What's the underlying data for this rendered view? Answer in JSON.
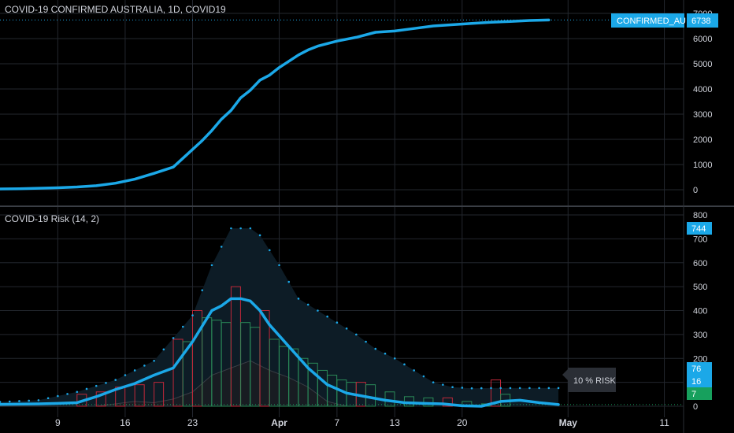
{
  "top_panel": {
    "title": "COVID-19 CONFIRMED AUSTRALIA, 1D, COVID19",
    "price_tag_label": "CONFIRMED_AU",
    "price_tag_value": "6738"
  },
  "bottom_panel": {
    "title": "COVID-19  Risk (14, 2)",
    "risk_label": "10 % RISK",
    "badges": [
      "744",
      "76",
      "16",
      "7"
    ]
  },
  "colors": {
    "background": "#000000",
    "main_line": "#1ba8e8",
    "dots": "#1ba8e8",
    "band_fill": "#0d1c26",
    "bar_red": "#c0283a",
    "bar_green": "#2a8a58",
    "area_gray": "#181c22",
    "grid": "#23272e",
    "badge_blue": "#1ba8e8",
    "badge_green": "#17a05d"
  },
  "x_axis": {
    "ticks": [
      {
        "label": "9",
        "date": "2020-03-09"
      },
      {
        "label": "16",
        "date": "2020-03-16"
      },
      {
        "label": "23",
        "date": "2020-03-23"
      },
      {
        "label": "Apr",
        "date": "2020-04-01"
      },
      {
        "label": "7",
        "date": "2020-04-07"
      },
      {
        "label": "13",
        "date": "2020-04-13"
      },
      {
        "label": "20",
        "date": "2020-04-20"
      },
      {
        "label": "May",
        "date": "2020-05-01"
      },
      {
        "label": "11",
        "date": "2020-05-11"
      }
    ],
    "start": "2020-03-03",
    "end": "2020-05-13"
  },
  "chart_data": [
    {
      "type": "line",
      "title": "COVID-19 CONFIRMED AUSTRALIA, 1D, COVID19",
      "ylim": [
        -300,
        7000
      ],
      "yticks": [
        "0",
        "1000",
        "2000",
        "3000",
        "4000",
        "5000",
        "6000",
        "7000"
      ],
      "grid": true,
      "series": [
        {
          "name": "CONFIRMED_AU",
          "x": [
            "2020-03-03",
            "2020-03-05",
            "2020-03-07",
            "2020-03-09",
            "2020-03-11",
            "2020-03-13",
            "2020-03-15",
            "2020-03-17",
            "2020-03-19",
            "2020-03-21",
            "2020-03-23",
            "2020-03-24",
            "2020-03-25",
            "2020-03-26",
            "2020-03-27",
            "2020-03-28",
            "2020-03-29",
            "2020-03-30",
            "2020-03-31",
            "2020-04-01",
            "2020-04-02",
            "2020-04-03",
            "2020-04-04",
            "2020-04-05",
            "2020-04-07",
            "2020-04-09",
            "2020-04-11",
            "2020-04-13",
            "2020-04-15",
            "2020-04-17",
            "2020-04-19",
            "2020-04-21",
            "2020-04-23",
            "2020-04-25",
            "2020-04-27",
            "2020-04-29"
          ],
          "y": [
            30,
            40,
            60,
            80,
            110,
            160,
            260,
            420,
            650,
            900,
            1600,
            1950,
            2350,
            2800,
            3150,
            3650,
            3950,
            4350,
            4550,
            4850,
            5100,
            5350,
            5550,
            5700,
            5900,
            6050,
            6250,
            6300,
            6400,
            6500,
            6550,
            6600,
            6650,
            6680,
            6720,
            6738
          ]
        }
      ]
    },
    {
      "type": "line",
      "title": "COVID-19  Risk (14, 2)",
      "ylim": [
        -30,
        800
      ],
      "yticks": [
        "0",
        "100",
        "200",
        "300",
        "400",
        "500",
        "600",
        "700",
        "800"
      ],
      "grid": true,
      "annotations": [
        "10 % RISK"
      ],
      "series": [
        {
          "name": "risk",
          "x": [
            "2020-03-03",
            "2020-03-07",
            "2020-03-09",
            "2020-03-11",
            "2020-03-13",
            "2020-03-15",
            "2020-03-17",
            "2020-03-19",
            "2020-03-21",
            "2020-03-23",
            "2020-03-25",
            "2020-03-26",
            "2020-03-27",
            "2020-03-28",
            "2020-03-29",
            "2020-03-30",
            "2020-03-31",
            "2020-04-02",
            "2020-04-04",
            "2020-04-06",
            "2020-04-08",
            "2020-04-10",
            "2020-04-12",
            "2020-04-14",
            "2020-04-16",
            "2020-04-18",
            "2020-04-20",
            "2020-04-22",
            "2020-04-24",
            "2020-04-26",
            "2020-04-28",
            "2020-04-30"
          ],
          "y": [
            8,
            10,
            12,
            15,
            40,
            70,
            95,
            130,
            160,
            270,
            400,
            420,
            450,
            450,
            440,
            400,
            340,
            250,
            160,
            90,
            55,
            40,
            25,
            15,
            12,
            10,
            2,
            0,
            20,
            25,
            15,
            7
          ]
        },
        {
          "name": "upper",
          "x": [
            "2020-03-03",
            "2020-03-07",
            "2020-03-11",
            "2020-03-15",
            "2020-03-19",
            "2020-03-23",
            "2020-03-25",
            "2020-03-27",
            "2020-03-29",
            "2020-03-30",
            "2020-04-01",
            "2020-04-03",
            "2020-04-05",
            "2020-04-07",
            "2020-04-09",
            "2020-04-11",
            "2020-04-13",
            "2020-04-15",
            "2020-04-17",
            "2020-04-19",
            "2020-04-21",
            "2020-04-23",
            "2020-04-25",
            "2020-04-27",
            "2020-04-30"
          ],
          "y": [
            18,
            25,
            60,
            110,
            190,
            380,
            590,
            744,
            744,
            715,
            590,
            450,
            400,
            350,
            300,
            240,
            200,
            150,
            100,
            80,
            75,
            76,
            76,
            76,
            76
          ]
        },
        {
          "name": "bars",
          "x": [
            "2020-03-11",
            "2020-03-13",
            "2020-03-15",
            "2020-03-17",
            "2020-03-19",
            "2020-03-21",
            "2020-03-22",
            "2020-03-23",
            "2020-03-24",
            "2020-03-25",
            "2020-03-26",
            "2020-03-27",
            "2020-03-28",
            "2020-03-29",
            "2020-03-30",
            "2020-03-31",
            "2020-04-01",
            "2020-04-02",
            "2020-04-03",
            "2020-04-04",
            "2020-04-05",
            "2020-04-06",
            "2020-04-07",
            "2020-04-08",
            "2020-04-09",
            "2020-04-10",
            "2020-04-12",
            "2020-04-14",
            "2020-04-16",
            "2020-04-18",
            "2020-04-20",
            "2020-04-22",
            "2020-04-23",
            "2020-04-24"
          ],
          "y": [
            50,
            60,
            80,
            90,
            100,
            280,
            270,
            400,
            370,
            360,
            350,
            500,
            350,
            330,
            400,
            280,
            250,
            240,
            200,
            180,
            150,
            130,
            110,
            100,
            100,
            90,
            60,
            40,
            35,
            35,
            20,
            10,
            110,
            50
          ]
        },
        {
          "name": "lower",
          "x": [
            "2020-03-03",
            "2020-03-13",
            "2020-03-17",
            "2020-03-19",
            "2020-03-21",
            "2020-03-23",
            "2020-03-25",
            "2020-03-27",
            "2020-03-29",
            "2020-03-31",
            "2020-04-02",
            "2020-04-04",
            "2020-04-06",
            "2020-04-08",
            "2020-04-10"
          ],
          "y": [
            0,
            0,
            20,
            15,
            30,
            60,
            130,
            160,
            190,
            150,
            120,
            80,
            20,
            0,
            0
          ]
        }
      ],
      "markers": [
        {
          "label": "744",
          "value": 744
        },
        {
          "label": "76",
          "value": 76
        },
        {
          "label": "16",
          "value": 16
        },
        {
          "label": "7",
          "value": 7
        },
        {
          "label": "0",
          "value": 0
        }
      ]
    }
  ]
}
